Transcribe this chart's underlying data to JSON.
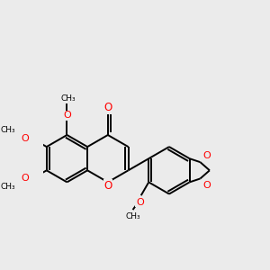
{
  "background_color": "#ebebeb",
  "bond_color": "#000000",
  "oxygen_color": "#ff0000",
  "lw": 1.4,
  "figsize": [
    3.0,
    3.0
  ],
  "dpi": 100,
  "xlim": [
    -1.0,
    8.5
  ],
  "ylim": [
    -2.5,
    4.5
  ]
}
